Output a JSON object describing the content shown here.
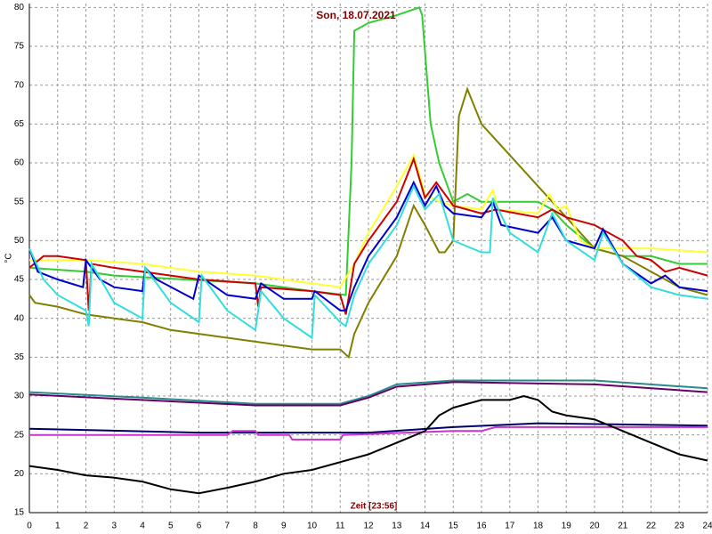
{
  "chart_data": {
    "type": "line",
    "title": "Son, 18.07.2021",
    "x_label": "Zeit [23:56]",
    "y_label": "°C",
    "xlim": [
      0,
      24
    ],
    "ylim": [
      15,
      80.5
    ],
    "xticks": [
      0,
      1,
      2,
      3,
      4,
      5,
      6,
      7,
      8,
      9,
      10,
      11,
      12,
      13,
      14,
      15,
      16,
      17,
      18,
      19,
      20,
      21,
      22,
      23,
      24
    ],
    "yticks": [
      15,
      20,
      25,
      30,
      35,
      40,
      45,
      50,
      55,
      60,
      65,
      70,
      75,
      80
    ],
    "grid": true,
    "series": [
      {
        "color": "#33cc33",
        "x": [
          0,
          2,
          3,
          8,
          10,
          11.2,
          11.4,
          11.5,
          12,
          13,
          13.8,
          13.9,
          14.2,
          14.5,
          15,
          15.5,
          16,
          18,
          18.5,
          19,
          20,
          21,
          22,
          23,
          24
        ],
        "values": [
          46.5,
          46,
          45.5,
          44.5,
          43.5,
          43,
          60,
          77,
          78,
          79,
          80,
          79,
          65,
          60,
          55,
          56,
          55,
          55,
          54,
          52,
          49,
          48,
          48,
          47,
          47
        ]
      },
      {
        "color": "#808000",
        "x": [
          0,
          0.2,
          1,
          2,
          3,
          4,
          5,
          6,
          7,
          8,
          9,
          10,
          11,
          11.3,
          11.5,
          12,
          13,
          13.6,
          14,
          14.5,
          14.7,
          15,
          15.2,
          15.5,
          16,
          17,
          18,
          19,
          20,
          21,
          22,
          23,
          24
        ],
        "values": [
          43,
          42,
          41.5,
          40.5,
          40,
          39.5,
          38.5,
          38,
          37.5,
          37,
          36.5,
          36,
          36,
          35,
          38,
          42,
          48,
          54.5,
          52,
          48.5,
          48.5,
          50,
          66,
          69.5,
          65,
          61,
          57,
          53,
          49,
          48,
          46,
          44,
          43
        ]
      },
      {
        "color": "#ffff33",
        "x": [
          0,
          2,
          4,
          6,
          8,
          10,
          11,
          11.5,
          12,
          13,
          13.6,
          14,
          14.5,
          15,
          16,
          16.4,
          16.6,
          18,
          18.4,
          18.7,
          19,
          19.5,
          20,
          22,
          24
        ],
        "values": [
          47.5,
          47.5,
          47,
          46,
          45.5,
          44.5,
          44,
          47,
          51,
          57,
          61,
          56,
          55,
          54.5,
          54,
          56.5,
          54,
          53.5,
          56,
          54,
          54.5,
          50,
          49,
          49,
          48.5
        ]
      },
      {
        "color": "#cc0000",
        "x": [
          0,
          0.5,
          1,
          2,
          2.1,
          2.2,
          3,
          4,
          5,
          6,
          8,
          8.1,
          8.2,
          10,
          11,
          11.2,
          11.5,
          12,
          13,
          13.6,
          14,
          14.4,
          15,
          16,
          16.5,
          18,
          18.5,
          19,
          20,
          21,
          21.5,
          22,
          22.5,
          23,
          24
        ],
        "values": [
          46.5,
          48,
          48,
          47.5,
          41,
          47,
          46.5,
          46,
          45.5,
          45,
          44.5,
          41.5,
          44,
          43.5,
          43,
          40.5,
          47,
          50,
          55,
          60.5,
          55.5,
          57.5,
          54.5,
          53.5,
          54,
          53,
          54,
          53,
          52,
          50,
          48,
          47.5,
          46,
          46.5,
          45.5
        ]
      },
      {
        "color": "#0000cc",
        "x": [
          0,
          0.3,
          1,
          1.9,
          2,
          2.5,
          3,
          4,
          4.1,
          4.5,
          5.8,
          6,
          7,
          8,
          8.2,
          9,
          10,
          10.1,
          11,
          11.2,
          11.5,
          12,
          13,
          13.6,
          14,
          14.4,
          14.7,
          15,
          16,
          16.4,
          16.7,
          18,
          18.5,
          19,
          20,
          20.3,
          21,
          22,
          22.5,
          23,
          24
        ],
        "values": [
          49,
          46,
          45,
          44,
          47.5,
          45,
          44,
          43.5,
          46.5,
          45,
          42.5,
          45.5,
          43,
          42.5,
          44.5,
          42.5,
          42.5,
          43.5,
          41,
          41,
          44,
          48,
          53,
          57.5,
          54.5,
          57,
          54.5,
          53.5,
          53,
          55,
          52,
          51,
          53,
          50,
          49,
          51.5,
          47,
          44.5,
          45.5,
          44,
          43.5
        ]
      },
      {
        "color": "#33dddd",
        "x": [
          0,
          0.5,
          1,
          2,
          2.1,
          2.2,
          3,
          4,
          4.1,
          5,
          6,
          6.1,
          7,
          8,
          8.2,
          9,
          10,
          10.1,
          11,
          11.2,
          11.5,
          12,
          13,
          13.6,
          14,
          14.5,
          15,
          16,
          16.3,
          16.4,
          17,
          18,
          18.5,
          19,
          20,
          20.3,
          21,
          22,
          23,
          24
        ],
        "values": [
          49,
          45,
          43,
          41,
          39,
          47,
          42,
          40,
          46.5,
          42,
          39.5,
          45.5,
          41,
          38.5,
          43.5,
          40,
          37.5,
          43,
          39.5,
          39,
          43,
          47,
          52,
          57,
          54,
          56,
          50,
          48.5,
          48.5,
          55.5,
          51,
          48.5,
          53.5,
          50,
          47.5,
          51,
          47,
          44,
          43,
          42.5
        ]
      },
      {
        "color": "#2a8a8a",
        "x": [
          0,
          4,
          8,
          11,
          12,
          13,
          15,
          20,
          24
        ],
        "values": [
          30.5,
          29.8,
          29,
          29,
          30,
          31.5,
          32,
          32,
          31
        ]
      },
      {
        "color": "#660066",
        "x": [
          0,
          4,
          8,
          11,
          12,
          13,
          15,
          20,
          24
        ],
        "values": [
          30.2,
          29.5,
          28.8,
          28.8,
          29.8,
          31.2,
          31.8,
          31.5,
          30.5
        ]
      },
      {
        "color": "#000066",
        "x": [
          0,
          6,
          12,
          15,
          18,
          24
        ],
        "values": [
          25.8,
          25.3,
          25.3,
          26,
          26.5,
          26.2
        ]
      },
      {
        "color": "#cc33cc",
        "x": [
          0,
          7,
          7.2,
          8,
          8.1,
          9.2,
          9.3,
          11,
          11.1,
          15,
          16,
          16.5,
          24
        ],
        "values": [
          25,
          25,
          25.5,
          25.5,
          25,
          25,
          24.4,
          24.4,
          25,
          25.5,
          25.5,
          26,
          26
        ]
      },
      {
        "color": "#000000",
        "x": [
          0,
          1,
          2,
          3,
          4,
          5,
          6,
          7,
          8,
          9,
          10,
          11,
          12,
          13,
          14,
          14.5,
          15,
          16,
          17,
          17.5,
          18,
          18.5,
          19,
          20,
          21,
          22,
          23,
          24
        ],
        "values": [
          21,
          20.5,
          19.8,
          19.5,
          19,
          18,
          17.5,
          18.2,
          19,
          20,
          20.5,
          21.5,
          22.5,
          24,
          25.5,
          27.5,
          28.5,
          29.5,
          29.5,
          30,
          29.5,
          28,
          27.5,
          27,
          25.5,
          24,
          22.5,
          21.7
        ]
      }
    ]
  }
}
